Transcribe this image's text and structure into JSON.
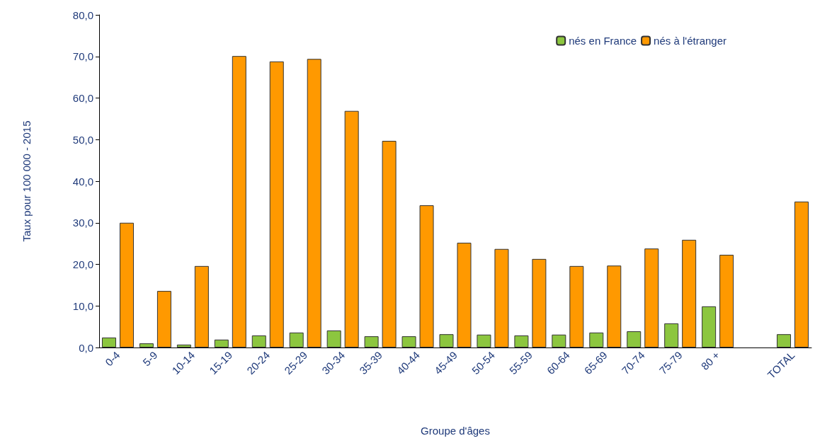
{
  "chart_data": {
    "type": "bar",
    "xlabel": "Groupe d'âges",
    "ylabel": "Taux pour 100 000 - 2015",
    "categories": [
      "0-4",
      "5-9",
      "10-14",
      "15-19",
      "20-24",
      "25-29",
      "30-34",
      "35-39",
      "40-44",
      "45-49",
      "50-54",
      "55-59",
      "60-64",
      "65-69",
      "70-74",
      "75-79",
      "80 +",
      null,
      "TOTAL"
    ],
    "series": [
      {
        "name": "nés en France",
        "color": "#8cc63f",
        "values": [
          2.4,
          1.0,
          0.7,
          1.9,
          2.9,
          3.6,
          4.1,
          2.7,
          2.7,
          3.2,
          3.1,
          2.9,
          3.1,
          3.6,
          3.9,
          5.8,
          9.9,
          null,
          3.2
        ]
      },
      {
        "name": "nés à l'étranger",
        "color": "#ff9900",
        "values": [
          30.0,
          13.6,
          19.6,
          70.1,
          68.8,
          69.4,
          56.9,
          49.7,
          34.2,
          25.2,
          23.7,
          21.3,
          19.6,
          19.7,
          23.8,
          25.9,
          22.3,
          null,
          35.1
        ]
      }
    ],
    "ylim": [
      0,
      80
    ],
    "yticks": [
      {
        "value": 0,
        "label": "0,0"
      },
      {
        "value": 10,
        "label": "10,0"
      },
      {
        "value": 20,
        "label": "20,0"
      },
      {
        "value": 30,
        "label": "30,0"
      },
      {
        "value": 40,
        "label": "40,0"
      },
      {
        "value": 50,
        "label": "50,0"
      },
      {
        "value": 60,
        "label": "60,0"
      },
      {
        "value": 70,
        "label": "70,0"
      },
      {
        "value": 80,
        "label": "80,0"
      }
    ],
    "grid": false,
    "legend": "top right"
  }
}
